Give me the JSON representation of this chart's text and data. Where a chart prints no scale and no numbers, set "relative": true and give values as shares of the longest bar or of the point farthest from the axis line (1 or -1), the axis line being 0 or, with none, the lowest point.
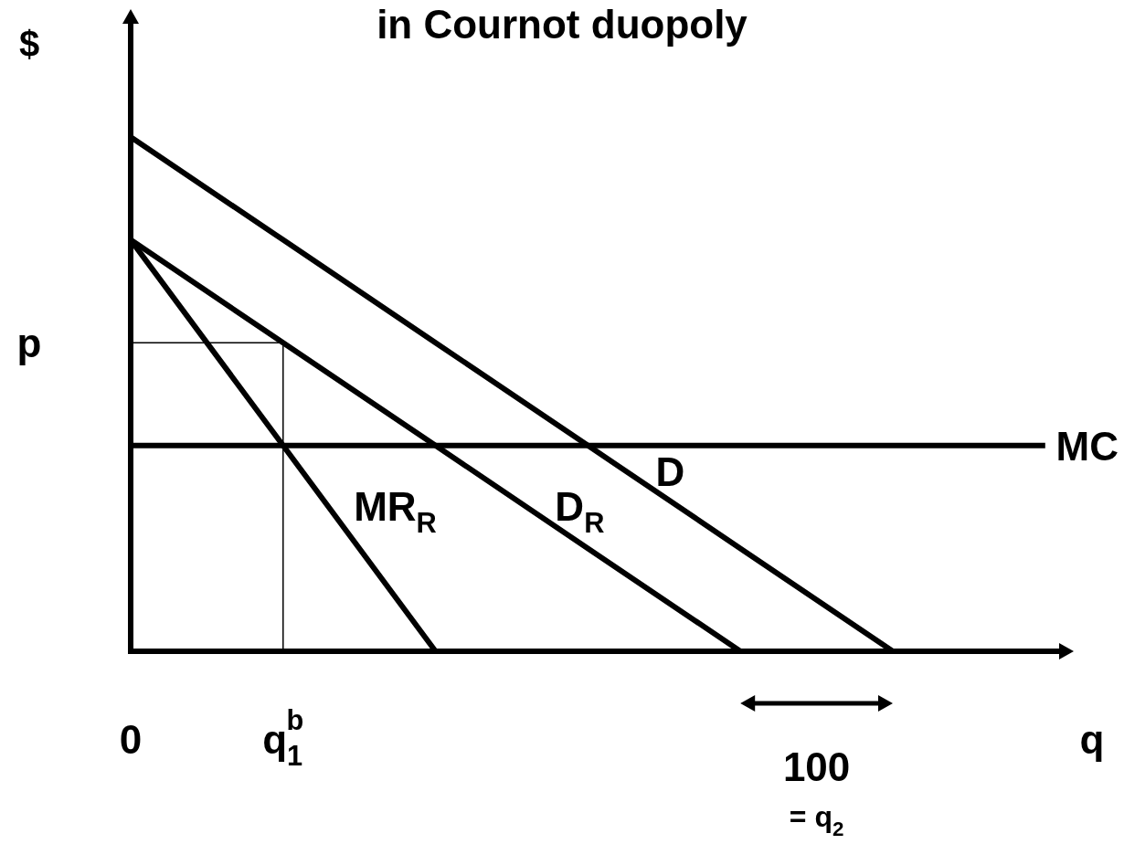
{
  "chart_data": {
    "type": "line",
    "title": "in Cournot duopoly",
    "xlabel": "q",
    "ylabel": "$",
    "relative": true,
    "categories": [
      "0",
      "q$_{1}$$^{b}$",
      null,
      null,
      null,
      null,
      null
    ],
    "series": [
      {
        "name": "D",
        "color": "#000000",
        "values": [
          1,
          0.8,
          0.6,
          0.4,
          0.2,
          0,
          null
        ]
      },
      {
        "name": "D$_{R}$",
        "color": "#000000",
        "values": [
          0.8,
          0.6,
          0.4,
          0.2,
          0,
          null,
          null
        ]
      },
      {
        "name": "MR$_{R}$",
        "color": "#000000",
        "values": [
          0.8,
          0.4,
          0,
          null,
          null,
          null,
          null
        ]
      },
      {
        "name": "MC",
        "color": "#000000",
        "values": [
          0.4,
          0.4,
          0.4,
          0.4,
          0.4,
          0.4,
          0.4
        ]
      }
    ],
    "ref_lines": [
      {
        "axis": "y",
        "value": 0.6,
        "label": "p",
        "color": "#000000"
      },
      {
        "axis": "x",
        "value": "q$_{1}$$^{b}$",
        "color": "#000000"
      }
    ],
    "annotations": [
      "100",
      "= q$_{2}$"
    ],
    "legend": false,
    "marker": "none",
    "line_style": "solid"
  }
}
